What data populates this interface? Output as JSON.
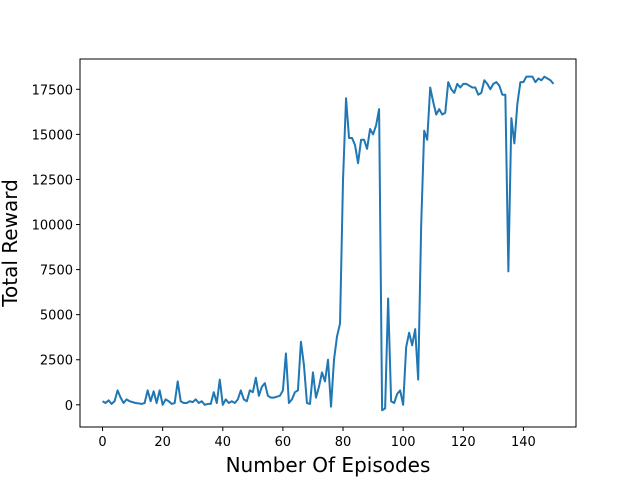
{
  "chart_data": {
    "type": "line",
    "xlabel": "Number Of Episodes",
    "ylabel": "Total Reward",
    "x": [
      0,
      1,
      2,
      3,
      4,
      5,
      6,
      7,
      8,
      9,
      10,
      11,
      12,
      13,
      14,
      15,
      16,
      17,
      18,
      19,
      20,
      21,
      22,
      23,
      24,
      25,
      26,
      27,
      28,
      29,
      30,
      31,
      32,
      33,
      34,
      35,
      36,
      37,
      38,
      39,
      40,
      41,
      42,
      43,
      44,
      45,
      46,
      47,
      48,
      49,
      50,
      51,
      52,
      53,
      54,
      55,
      56,
      57,
      58,
      59,
      60,
      61,
      62,
      63,
      64,
      65,
      66,
      67,
      68,
      69,
      70,
      71,
      72,
      73,
      74,
      75,
      76,
      77,
      78,
      79,
      80,
      81,
      82,
      83,
      84,
      85,
      86,
      87,
      88,
      89,
      90,
      91,
      92,
      93,
      94,
      95,
      96,
      97,
      98,
      99,
      100,
      101,
      102,
      103,
      104,
      105,
      106,
      107,
      108,
      109,
      110,
      111,
      112,
      113,
      114,
      115,
      116,
      117,
      118,
      119,
      120,
      121,
      122,
      123,
      124,
      125,
      126,
      127,
      128,
      129,
      130,
      131,
      132,
      133,
      134,
      135,
      136,
      137,
      138,
      139,
      140,
      141,
      142,
      143,
      144,
      145,
      146,
      147,
      148,
      149,
      150
    ],
    "series": [
      {
        "color": "#1f77b4",
        "values": [
          200,
          100,
          250,
          50,
          200,
          800,
          400,
          100,
          300,
          200,
          150,
          100,
          80,
          50,
          100,
          800,
          200,
          750,
          100,
          800,
          0,
          300,
          200,
          50,
          100,
          1300,
          200,
          100,
          100,
          200,
          150,
          300,
          100,
          200,
          0,
          50,
          50,
          700,
          100,
          1400,
          0,
          300,
          100,
          200,
          100,
          300,
          800,
          300,
          200,
          800,
          700,
          1500,
          500,
          1000,
          1200,
          500,
          400,
          400,
          450,
          500,
          800,
          2850,
          100,
          300,
          700,
          800,
          3500,
          2200,
          100,
          50,
          1800,
          400,
          1000,
          1800,
          1300,
          2500,
          -100,
          2500,
          3800,
          4500,
          12500,
          17000,
          14800,
          14800,
          14400,
          13400,
          14700,
          14700,
          14200,
          15300,
          15000,
          15500,
          16400,
          -300,
          -200,
          5900,
          200,
          100,
          600,
          800,
          0,
          3200,
          4000,
          3300,
          4200,
          1400,
          10000,
          15200,
          14700,
          17600,
          16800,
          16100,
          16400,
          16100,
          16200,
          17900,
          17500,
          17300,
          17800,
          17600,
          17800,
          17800,
          17700,
          17600,
          17600,
          17200,
          17300,
          18000,
          17800,
          17500,
          17800,
          17900,
          17700,
          17200,
          17200,
          7400,
          15900,
          14500,
          16700,
          17900,
          17900,
          18200,
          18200,
          18200,
          17900,
          18100,
          18000,
          18200,
          18100,
          18000,
          17800
        ]
      }
    ],
    "xlim": [
      -7.5,
      157.5
    ],
    "ylim": [
      -1230,
      19180
    ],
    "xticks": [
      0,
      20,
      40,
      60,
      80,
      100,
      120,
      140
    ],
    "yticks": [
      0,
      2500,
      5000,
      7500,
      10000,
      12500,
      15000,
      17500
    ]
  }
}
